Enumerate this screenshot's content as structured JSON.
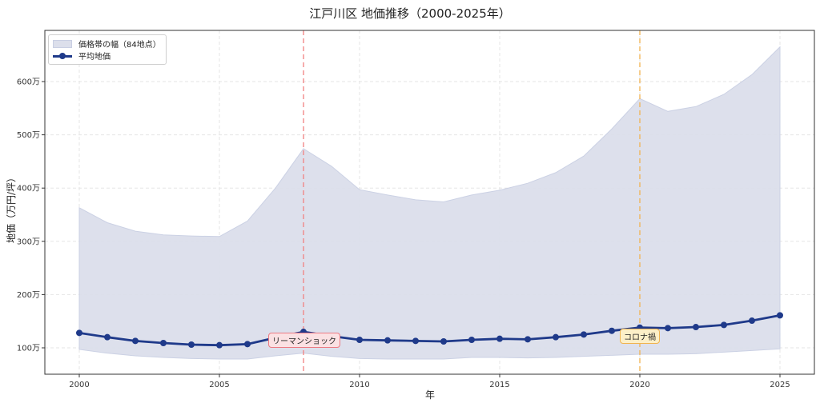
{
  "chart": {
    "title": "江戸川区 地価推移（2000-2025年）",
    "xlabel": "年",
    "ylabel": "地価（万円/坪）",
    "x_ticks": [
      "2000",
      "2005",
      "2010",
      "2015",
      "2020",
      "2025"
    ],
    "y_ticks": [
      "100万",
      "200万",
      "300万",
      "400万",
      "500万",
      "600万"
    ],
    "legend": {
      "band_label": "価格帯の幅（84地点）",
      "mean_label": "平均地価"
    },
    "annotations": {
      "lehman": "リーマンショック",
      "covid": "コロナ禍"
    },
    "colors": {
      "band_fill": "#dcdfeb",
      "mean_line": "#1f3a8a",
      "lehman_line": "#f08080",
      "covid_line": "#f2b24f"
    }
  },
  "chart_data": {
    "type": "line",
    "title": "江戸川区 地価推移（2000-2025年）",
    "xlabel": "年",
    "ylabel": "地価（万円/坪）",
    "x": [
      2000,
      2001,
      2002,
      2003,
      2004,
      2005,
      2006,
      2007,
      2008,
      2009,
      2010,
      2011,
      2012,
      2013,
      2014,
      2015,
      2016,
      2017,
      2018,
      2019,
      2020,
      2021,
      2022,
      2023,
      2024,
      2025
    ],
    "series": [
      {
        "name": "平均地価",
        "values": [
          128,
          120,
          113,
          109,
          106,
          105,
          107,
          119,
          130,
          122,
          115,
          114,
          113,
          112,
          115,
          117,
          116,
          120,
          125,
          132,
          138,
          137,
          139,
          143,
          151,
          161
        ]
      },
      {
        "name": "価格帯の幅（84地点）上限",
        "values": [
          363,
          335,
          319,
          312,
          310,
          309,
          338,
          400,
          474,
          441,
          397,
          387,
          378,
          374,
          387,
          396,
          409,
          429,
          460,
          511,
          568,
          544,
          553,
          576,
          613,
          665
        ]
      },
      {
        "name": "価格帯の幅（84地点）下限",
        "values": [
          97,
          90,
          85,
          82,
          80,
          79,
          79,
          85,
          90,
          84,
          80,
          79,
          79,
          79,
          82,
          82,
          81,
          82,
          84,
          86,
          88,
          88,
          89,
          92,
          95,
          98
        ]
      }
    ],
    "vlines": [
      {
        "x": 2008,
        "label": "リーマンショック",
        "color": "#f08080"
      },
      {
        "x": 2020,
        "label": "コロナ禍",
        "color": "#f2b24f"
      }
    ],
    "xlim": [
      1998.8,
      2026.2
    ],
    "ylim": [
      50,
      700
    ],
    "grid": true,
    "legend_position": "upper left"
  }
}
